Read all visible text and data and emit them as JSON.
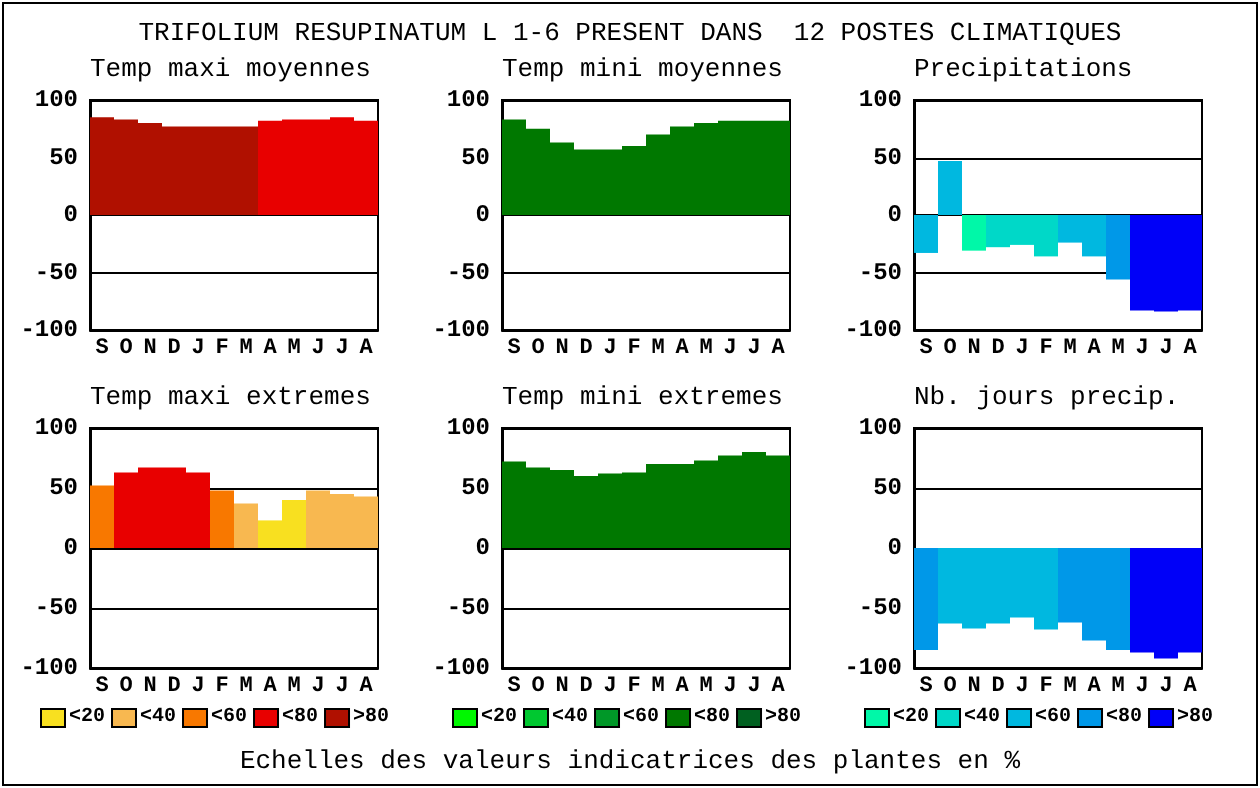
{
  "chart_data": [
    {
      "type": "bar",
      "title": "Temp maxi moyennes",
      "annotations": [
        "TRIFOLIUM RESUPINATUM L 1-6 PRESENT DANS  12 POSTES CLIMATIQUES"
      ],
      "categories": [
        "S",
        "O",
        "N",
        "D",
        "J",
        "F",
        "M",
        "A",
        "M",
        "J",
        "J",
        "A"
      ],
      "values": [
        85,
        83,
        80,
        77,
        77,
        77,
        77,
        82,
        83,
        83,
        85,
        82
      ],
      "colors": [
        "#b01000",
        "#b01000",
        "#b01000",
        "#b01000",
        "#b01000",
        "#b01000",
        "#b01000",
        "#e80000",
        "#e80000",
        "#e80000",
        "#e80000",
        "#e80000"
      ],
      "ylim": [
        -100,
        100
      ],
      "yticks": [
        -100,
        -50,
        0,
        50,
        100
      ],
      "grid": "y"
    },
    {
      "type": "bar",
      "title": "Temp mini moyennes",
      "categories": [
        "S",
        "O",
        "N",
        "D",
        "J",
        "F",
        "M",
        "A",
        "M",
        "J",
        "J",
        "A"
      ],
      "values": [
        83,
        75,
        63,
        57,
        57,
        60,
        70,
        77,
        80,
        82,
        82,
        82
      ],
      "colors": [
        "#007800",
        "#007800",
        "#007800",
        "#007800",
        "#007800",
        "#007800",
        "#007800",
        "#007800",
        "#007800",
        "#007800",
        "#007800",
        "#007800"
      ],
      "ylim": [
        -100,
        100
      ],
      "yticks": [
        -100,
        -50,
        0,
        50,
        100
      ],
      "grid": "y"
    },
    {
      "type": "bar",
      "title": "Precipitations",
      "categories": [
        "S",
        "O",
        "N",
        "D",
        "J",
        "F",
        "M",
        "A",
        "M",
        "J",
        "J",
        "A"
      ],
      "values": [
        -33,
        47,
        -31,
        -28,
        -26,
        -36,
        -24,
        -36,
        -56,
        -83,
        -84,
        -83
      ],
      "colors": [
        "#00b8e0",
        "#00b8e0",
        "#00f8a8",
        "#00d8c8",
        "#00d8c8",
        "#00d8c8",
        "#00b8e0",
        "#00b8e0",
        "#0098e8",
        "#0000f8",
        "#0000f8",
        "#0000f8"
      ],
      "ylim": [
        -100,
        100
      ],
      "yticks": [
        -100,
        -50,
        0,
        50,
        100
      ],
      "grid": "y"
    },
    {
      "type": "bar",
      "title": "Temp maxi extremes",
      "categories": [
        "S",
        "O",
        "N",
        "D",
        "J",
        "F",
        "M",
        "A",
        "M",
        "J",
        "J",
        "A"
      ],
      "series": [
        {
          "name": "<20",
          "color": "#f8e020",
          "values": [
            null,
            null,
            null,
            null,
            null,
            null,
            null,
            23,
            40,
            null,
            null,
            null
          ]
        },
        {
          "name": "<40",
          "color": "#f8b850",
          "values": [
            null,
            null,
            null,
            null,
            null,
            null,
            37,
            null,
            null,
            48,
            45,
            43
          ]
        },
        {
          "name": "<60",
          "color": "#f87800",
          "values": [
            52,
            null,
            null,
            null,
            null,
            48,
            null,
            null,
            null,
            null,
            null,
            null
          ]
        },
        {
          "name": "<80",
          "color": "#e80000",
          "values": [
            null,
            63,
            67,
            67,
            63,
            null,
            null,
            null,
            null,
            null,
            null,
            null
          ]
        },
        {
          "name": ">80",
          "color": "#b01000",
          "values": [
            null,
            null,
            null,
            null,
            null,
            null,
            null,
            null,
            null,
            null,
            null,
            null
          ]
        }
      ],
      "ylim": [
        -100,
        100
      ],
      "yticks": [
        -100,
        -50,
        0,
        50,
        100
      ],
      "grid": "y",
      "legend": "bottom"
    },
    {
      "type": "bar",
      "title": "Temp mini extremes",
      "annotations": [
        "Echelles des valeurs indicatrices des plantes en %"
      ],
      "categories": [
        "S",
        "O",
        "N",
        "D",
        "J",
        "F",
        "M",
        "A",
        "M",
        "J",
        "J",
        "A"
      ],
      "series": [
        {
          "name": "<20",
          "color": "#00f800",
          "values": [
            null,
            null,
            null,
            null,
            null,
            null,
            null,
            null,
            null,
            null,
            null,
            null
          ]
        },
        {
          "name": "<40",
          "color": "#00c830",
          "values": [
            null,
            null,
            null,
            null,
            null,
            null,
            null,
            null,
            null,
            null,
            null,
            null
          ]
        },
        {
          "name": "<60",
          "color": "#009828",
          "values": [
            null,
            null,
            null,
            null,
            null,
            null,
            null,
            null,
            null,
            null,
            null,
            null
          ]
        },
        {
          "name": "<80",
          "color": "#007800",
          "values": [
            72,
            67,
            65,
            60,
            62,
            63,
            70,
            70,
            73,
            77,
            80,
            77
          ]
        },
        {
          "name": ">80",
          "color": "#006020",
          "values": [
            null,
            null,
            null,
            null,
            null,
            null,
            null,
            null,
            null,
            null,
            null,
            null
          ]
        }
      ],
      "ylim": [
        -100,
        100
      ],
      "yticks": [
        -100,
        -50,
        0,
        50,
        100
      ],
      "grid": "y",
      "legend": "bottom"
    },
    {
      "type": "bar",
      "title": "Nb. jours precip.",
      "categories": [
        "S",
        "O",
        "N",
        "D",
        "J",
        "F",
        "M",
        "A",
        "M",
        "J",
        "J",
        "A"
      ],
      "series": [
        {
          "name": "<20",
          "color": "#00f8a8",
          "values": [
            null,
            null,
            null,
            null,
            null,
            null,
            null,
            null,
            null,
            null,
            null,
            null
          ]
        },
        {
          "name": "<40",
          "color": "#00d8c8",
          "values": [
            null,
            null,
            null,
            null,
            null,
            null,
            null,
            null,
            null,
            null,
            null,
            null
          ]
        },
        {
          "name": "<60",
          "color": "#00b8e0",
          "values": [
            null,
            -63,
            -67,
            -63,
            -58,
            -68,
            null,
            null,
            null,
            null,
            null,
            null
          ]
        },
        {
          "name": "<80",
          "color": "#0098e8",
          "values": [
            -85,
            null,
            null,
            null,
            null,
            null,
            -62,
            -77,
            -85,
            null,
            null,
            null
          ]
        },
        {
          "name": ">80",
          "color": "#0000f8",
          "values": [
            null,
            null,
            null,
            null,
            null,
            null,
            null,
            null,
            null,
            -87,
            -92,
            -87
          ]
        }
      ],
      "ylim": [
        -100,
        100
      ],
      "yticks": [
        -100,
        -50,
        0,
        50,
        100
      ],
      "grid": "y",
      "legend": "bottom"
    }
  ]
}
